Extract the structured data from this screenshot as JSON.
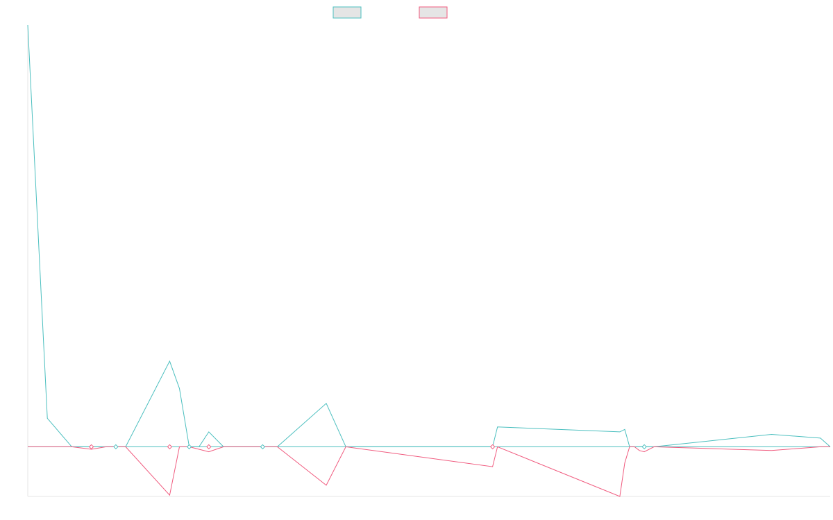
{
  "chart_data": {
    "type": "line",
    "title": "",
    "xlabel": "",
    "ylabel": "",
    "grid": false,
    "legend_placement": "top-center",
    "ylim": [
      -200,
      1700
    ],
    "x": [
      0,
      4,
      9,
      13,
      16,
      20,
      29,
      31,
      33,
      35,
      37,
      40,
      51,
      61,
      65,
      95,
      96,
      121,
      122,
      123,
      124,
      125,
      126,
      128,
      152,
      162,
      164
    ],
    "series": [
      {
        "name": "",
        "color": "#4bbfbf",
        "values": [
          1700,
          115,
          0,
          0,
          0,
          0,
          345,
          235,
          0,
          0,
          60,
          0,
          0,
          175,
          0,
          0,
          80,
          60,
          70,
          0,
          0,
          0,
          0,
          0,
          50,
          35,
          0
        ]
      },
      {
        "name": "",
        "color": "#f05a7e",
        "values": [
          0,
          0,
          0,
          -10,
          0,
          0,
          -195,
          0,
          0,
          -10,
          -20,
          0,
          0,
          -155,
          0,
          -80,
          0,
          -200,
          -65,
          0,
          0,
          -15,
          -20,
          0,
          -15,
          0,
          0
        ]
      }
    ],
    "markers": [
      {
        "x": 13,
        "y": 0
      },
      {
        "x": 18,
        "y": 0
      },
      {
        "x": 29,
        "y": 0
      },
      {
        "x": 33,
        "y": 0
      },
      {
        "x": 37,
        "y": 0
      },
      {
        "x": 48,
        "y": 0
      },
      {
        "x": 95,
        "y": 0
      },
      {
        "x": 126,
        "y": 0
      }
    ],
    "xlim": [
      0,
      164
    ]
  }
}
